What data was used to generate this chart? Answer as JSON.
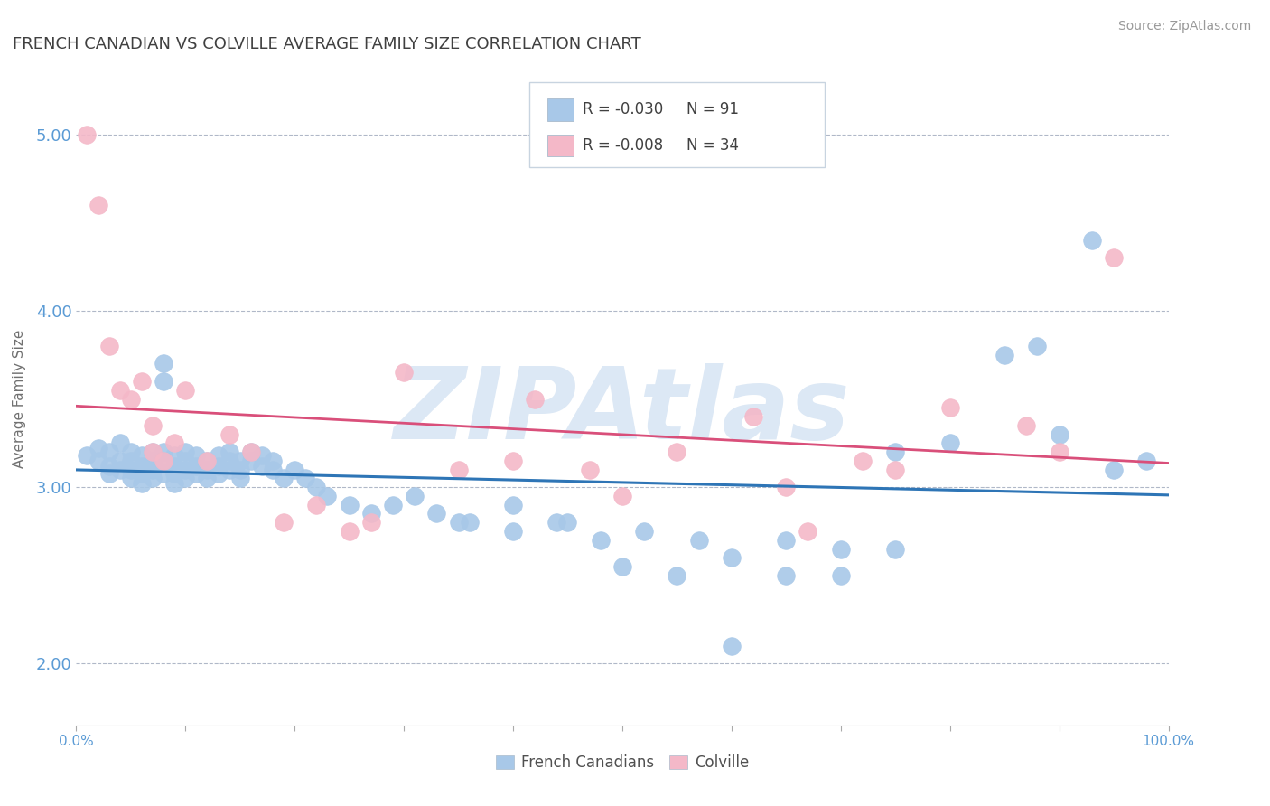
{
  "title": "FRENCH CANADIAN VS COLVILLE AVERAGE FAMILY SIZE CORRELATION CHART",
  "source_text": "Source: ZipAtlas.com",
  "ylabel": "Average Family Size",
  "xlim": [
    0.0,
    1.0
  ],
  "ylim": [
    1.65,
    5.35
  ],
  "yticks": [
    2.0,
    3.0,
    4.0,
    5.0
  ],
  "xticks": [
    0.0,
    0.1,
    0.2,
    0.3,
    0.4,
    0.5,
    0.6,
    0.7,
    0.8,
    0.9,
    1.0
  ],
  "xtick_labels": [
    "0.0%",
    "",
    "",
    "",
    "",
    "",
    "",
    "",
    "",
    "",
    "100.0%"
  ],
  "ytick_color": "#5b9bd5",
  "title_color": "#404040",
  "background_color": "#ffffff",
  "grid_color": "#b0b8c8",
  "watermark_text": "ZIPAtlas",
  "watermark_color": "#dce8f5",
  "legend_r1": "R = -0.030",
  "legend_n1": "N = 91",
  "legend_r2": "R = -0.008",
  "legend_n2": "N = 34",
  "legend_label1": "French Canadians",
  "legend_label2": "Colville",
  "series1_color": "#a8c8e8",
  "series2_color": "#f4b8c8",
  "trend1_color": "#2e75b6",
  "trend2_color": "#d94f7a",
  "series1_x": [
    0.01,
    0.02,
    0.02,
    0.03,
    0.03,
    0.03,
    0.04,
    0.04,
    0.04,
    0.05,
    0.05,
    0.05,
    0.05,
    0.06,
    0.06,
    0.06,
    0.06,
    0.07,
    0.07,
    0.07,
    0.07,
    0.08,
    0.08,
    0.08,
    0.08,
    0.08,
    0.09,
    0.09,
    0.09,
    0.09,
    0.1,
    0.1,
    0.1,
    0.1,
    0.11,
    0.11,
    0.11,
    0.12,
    0.12,
    0.12,
    0.13,
    0.13,
    0.13,
    0.14,
    0.14,
    0.14,
    0.15,
    0.15,
    0.15,
    0.16,
    0.16,
    0.17,
    0.17,
    0.18,
    0.18,
    0.19,
    0.2,
    0.21,
    0.22,
    0.23,
    0.25,
    0.27,
    0.29,
    0.31,
    0.33,
    0.36,
    0.4,
    0.44,
    0.48,
    0.52,
    0.57,
    0.6,
    0.65,
    0.7,
    0.75,
    0.8,
    0.85,
    0.88,
    0.9,
    0.93,
    0.95,
    0.98,
    0.35,
    0.4,
    0.45,
    0.5,
    0.55,
    0.6,
    0.65,
    0.7,
    0.75
  ],
  "series1_y": [
    3.18,
    3.22,
    3.15,
    3.2,
    3.12,
    3.08,
    3.25,
    3.15,
    3.1,
    3.2,
    3.15,
    3.1,
    3.05,
    3.18,
    3.12,
    3.08,
    3.02,
    3.2,
    3.15,
    3.1,
    3.05,
    3.6,
    3.7,
    3.2,
    3.15,
    3.08,
    3.18,
    3.12,
    3.08,
    3.02,
    3.2,
    3.15,
    3.1,
    3.05,
    3.18,
    3.12,
    3.08,
    3.15,
    3.1,
    3.05,
    3.18,
    3.12,
    3.08,
    3.2,
    3.15,
    3.1,
    3.15,
    3.1,
    3.05,
    3.2,
    3.15,
    3.18,
    3.12,
    3.15,
    3.1,
    3.05,
    3.1,
    3.05,
    3.0,
    2.95,
    2.9,
    2.85,
    2.9,
    2.95,
    2.85,
    2.8,
    2.75,
    2.8,
    2.7,
    2.75,
    2.7,
    2.6,
    2.7,
    2.65,
    2.65,
    3.25,
    3.75,
    3.8,
    3.3,
    4.4,
    3.1,
    3.15,
    2.8,
    2.9,
    2.8,
    2.55,
    2.5,
    2.1,
    2.5,
    2.5,
    3.2
  ],
  "series2_x": [
    0.01,
    0.02,
    0.03,
    0.04,
    0.05,
    0.06,
    0.07,
    0.07,
    0.08,
    0.09,
    0.1,
    0.12,
    0.14,
    0.16,
    0.19,
    0.22,
    0.25,
    0.27,
    0.3,
    0.35,
    0.42,
    0.47,
    0.55,
    0.62,
    0.67,
    0.72,
    0.8,
    0.87,
    0.9,
    0.95,
    0.4,
    0.5,
    0.65,
    0.75
  ],
  "series2_y": [
    5.0,
    4.6,
    3.8,
    3.55,
    3.5,
    3.6,
    3.2,
    3.35,
    3.15,
    3.25,
    3.55,
    3.15,
    3.3,
    3.2,
    2.8,
    2.9,
    2.75,
    2.8,
    3.65,
    3.1,
    3.5,
    3.1,
    3.2,
    3.4,
    2.75,
    3.15,
    3.45,
    3.35,
    3.2,
    4.3,
    3.15,
    2.95,
    3.0,
    3.1
  ]
}
